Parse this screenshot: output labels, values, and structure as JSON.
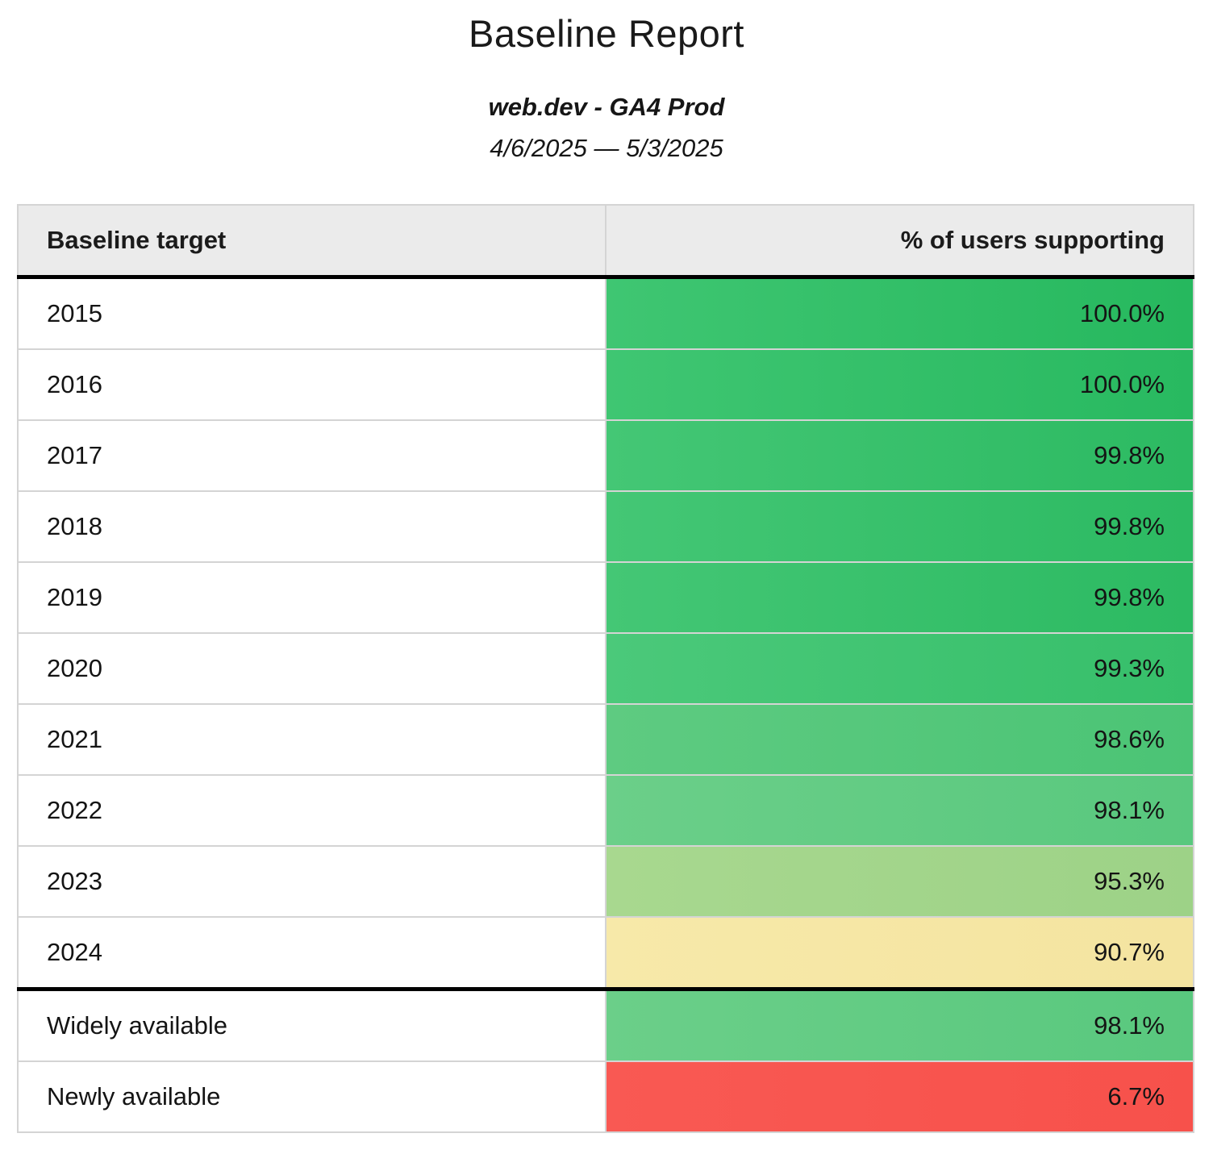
{
  "page": {
    "title": "Baseline Report",
    "subtitle": "web.dev - GA4 Prod",
    "date_range": "4/6/2025 — 5/3/2025"
  },
  "table": {
    "headers": {
      "target": "Baseline target",
      "support": "% of users supporting"
    },
    "header_bg": "#ebebeb",
    "divider_color": "#000000",
    "grid_color": "#d4d4d4",
    "rows": [
      {
        "target": "2015",
        "support": "100.0%",
        "group": "year",
        "color_left": "#3fc672",
        "color_right": "#26b85e"
      },
      {
        "target": "2016",
        "support": "100.0%",
        "group": "year",
        "color_left": "#3fc672",
        "color_right": "#28b960"
      },
      {
        "target": "2017",
        "support": "99.8%",
        "group": "year",
        "color_left": "#44c775",
        "color_right": "#2cba62"
      },
      {
        "target": "2018",
        "support": "99.8%",
        "group": "year",
        "color_left": "#44c775",
        "color_right": "#2cba62"
      },
      {
        "target": "2019",
        "support": "99.8%",
        "group": "year",
        "color_left": "#44c775",
        "color_right": "#2cba62"
      },
      {
        "target": "2020",
        "support": "99.3%",
        "group": "year",
        "color_left": "#4bc97a",
        "color_right": "#36bf6a"
      },
      {
        "target": "2021",
        "support": "98.6%",
        "group": "year",
        "color_left": "#5ecb81",
        "color_right": "#4bc475"
      },
      {
        "target": "2022",
        "support": "98.1%",
        "group": "year",
        "color_left": "#6bcf89",
        "color_right": "#59c87e"
      },
      {
        "target": "2023",
        "support": "95.3%",
        "group": "year",
        "color_left": "#a8d88f",
        "color_right": "#9dd287"
      },
      {
        "target": "2024",
        "support": "90.7%",
        "group": "year",
        "color_left": "#f7e9a9",
        "color_right": "#f4e4a0"
      },
      {
        "target": "Widely available",
        "support": "98.1%",
        "group": "summary",
        "color_left": "#6bcf89",
        "color_right": "#59c87e"
      },
      {
        "target": "Newly available",
        "support": "6.7%",
        "group": "summary",
        "color_left": "#f95953",
        "color_right": "#f7514b"
      }
    ]
  },
  "chart_data": {
    "type": "table",
    "title": "Baseline Report",
    "subtitle": "web.dev - GA4 Prod",
    "date_range": "4/6/2025 — 5/3/2025",
    "columns": [
      "Baseline target",
      "% of users supporting"
    ],
    "rows": [
      [
        "2015",
        100.0
      ],
      [
        "2016",
        100.0
      ],
      [
        "2017",
        99.8
      ],
      [
        "2018",
        99.8
      ],
      [
        "2019",
        99.8
      ],
      [
        "2020",
        99.3
      ],
      [
        "2021",
        98.6
      ],
      [
        "2022",
        98.1
      ],
      [
        "2023",
        95.3
      ],
      [
        "2024",
        90.7
      ],
      [
        "Widely available",
        98.1
      ],
      [
        "Newly available",
        6.7
      ]
    ],
    "value_unit": "%",
    "color_scale": "percentage mapped green (high) → yellow (~90) → red (low), applied to value cells",
    "layout": "two-column report table; year rows 2015–2024 then thick divider, then summary rows"
  }
}
